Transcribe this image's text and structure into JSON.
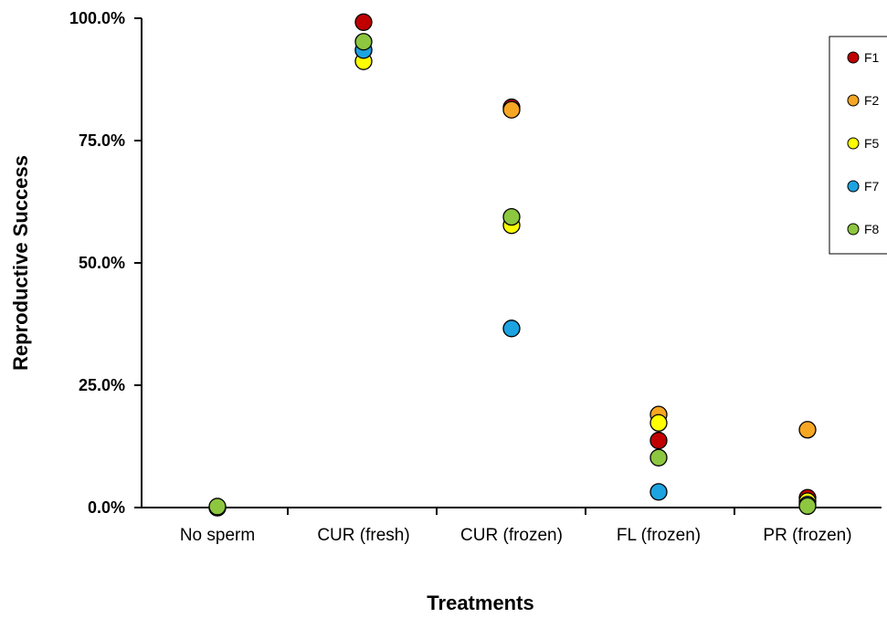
{
  "chart_data": {
    "type": "scatter",
    "title": "",
    "xlabel": "Treatments",
    "ylabel": "Reproductive Success",
    "categories": [
      "No sperm",
      "CUR (fresh)",
      "CUR (frozen)",
      "FL (frozen)",
      "PR (frozen)"
    ],
    "ylim": [
      0,
      100
    ],
    "yticks": [
      "0.0%",
      "25.0%",
      "50.0%",
      "75.0%",
      "100.0%"
    ],
    "grid": false,
    "legend_position": "top-right",
    "series": [
      {
        "name": "F1",
        "color": "#c00000",
        "values": [
          0,
          99.2,
          81.8,
          13.7,
          2.0
        ]
      },
      {
        "name": "F2",
        "color": "#f5a623",
        "values": [
          0,
          93.5,
          81.3,
          19.0,
          15.9
        ]
      },
      {
        "name": "F5",
        "color": "#ffff00",
        "values": [
          0,
          91.2,
          57.7,
          17.3,
          1.3
        ]
      },
      {
        "name": "F7",
        "color": "#1ca3e0",
        "values": [
          0,
          93.5,
          36.6,
          3.2,
          0.6
        ]
      },
      {
        "name": "F8",
        "color": "#8dc63f",
        "values": [
          0.2,
          95.2,
          59.4,
          10.2,
          0.3
        ]
      }
    ]
  }
}
